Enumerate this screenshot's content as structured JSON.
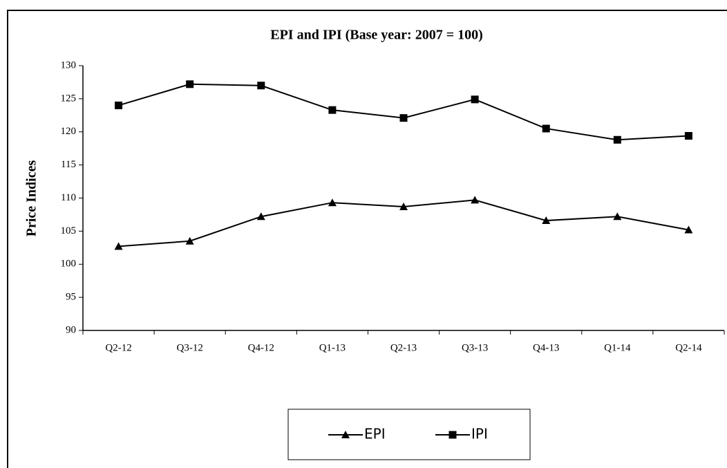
{
  "chart_data": {
    "type": "line",
    "title": "EPI  and IPI (Base year: 2007 = 100)",
    "y_label": "Price Indices",
    "categories": [
      "Q2-12",
      "Q3-12",
      "Q4-12",
      "Q1-13",
      "Q2-13",
      "Q3-13",
      "Q4-13",
      "Q1-14",
      "Q2-14"
    ],
    "series": [
      {
        "name": "EPI",
        "color": "#000000",
        "marker": "triangle",
        "values": [
          102.7,
          103.5,
          107.2,
          109.3,
          108.7,
          109.7,
          106.6,
          107.2,
          105.2
        ]
      },
      {
        "name": "IPI",
        "color": "#000000",
        "marker": "square",
        "values": [
          124.0,
          127.2,
          127.0,
          123.3,
          122.1,
          124.9,
          120.5,
          118.8,
          119.4
        ]
      }
    ],
    "ylim": [
      90,
      130
    ],
    "yticks": [
      90,
      95,
      100,
      105,
      110,
      115,
      120,
      125,
      130
    ],
    "grid": false,
    "legend": "bottom"
  }
}
